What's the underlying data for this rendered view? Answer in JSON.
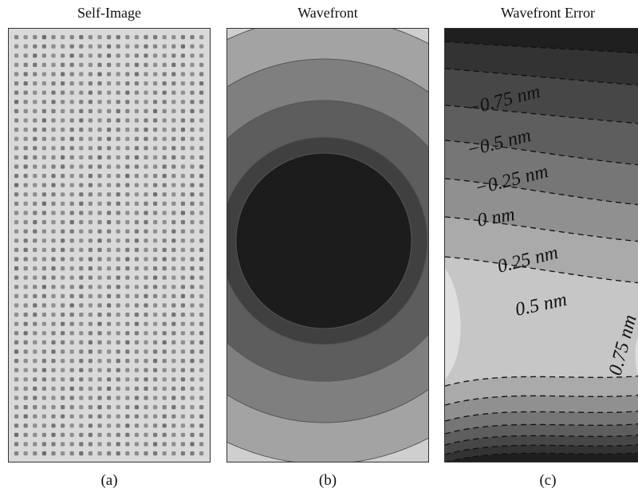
{
  "panels": [
    {
      "title": "Self-Image",
      "caption": "(a)"
    },
    {
      "title": "Wavefront",
      "caption": "(b)"
    },
    {
      "title": "Wavefront Error",
      "caption": "(c)",
      "contour_labels": [
        "−0.75 nm",
        "−0.5 nm",
        "−0.25 nm",
        "0 nm",
        "0.25 nm",
        "0.5 nm",
        "0.75 nm"
      ]
    }
  ],
  "colors": {
    "dot": "#6f6f6f",
    "panel_a_bg": "#d9d9d9",
    "wavefront_rings": [
      "#cfcfcf",
      "#a3a3a3",
      "#7f7f7f",
      "#5d5d5d",
      "#404040",
      "#1c1c1c"
    ],
    "error_bands": [
      "#1f1f1f",
      "#333333",
      "#474747",
      "#5e5e5e",
      "#767676",
      "#909090",
      "#aaaaaa",
      "#c6c6c6",
      "#dedede"
    ]
  }
}
